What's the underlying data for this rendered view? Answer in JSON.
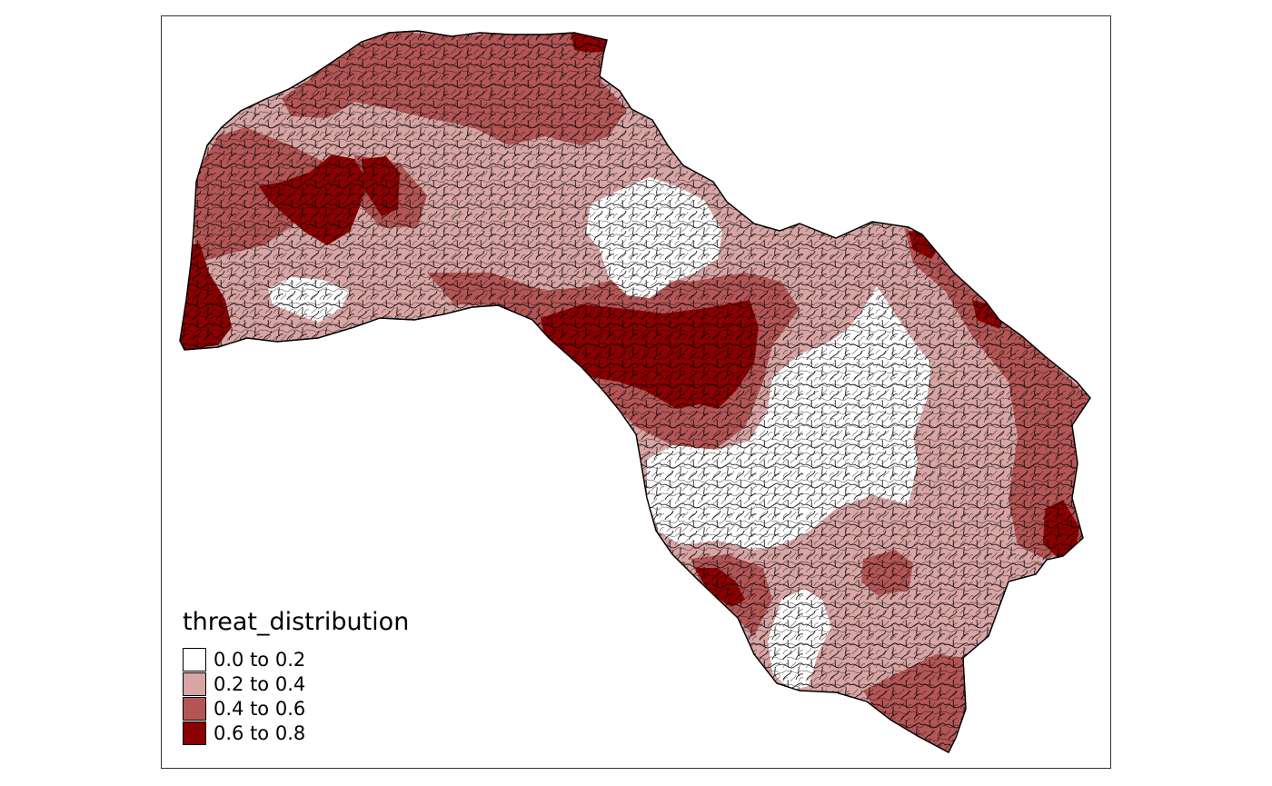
{
  "legend": {
    "title": "threat_distribution",
    "classes": [
      {
        "label": "0.0 to 0.2",
        "color": "#ffffff"
      },
      {
        "label": "0.2 to 0.4",
        "color": "#d8a4a4"
      },
      {
        "label": "0.4 to 0.6",
        "color": "#b45656"
      },
      {
        "label": "0.6 to 0.8",
        "color": "#8b0000"
      }
    ]
  }
}
